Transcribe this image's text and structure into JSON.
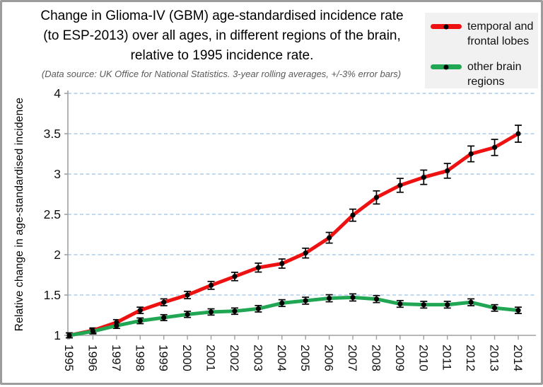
{
  "header": {
    "title_lines": [
      "Change in Glioma-IV (GBM) age-standardised incidence rate",
      "(to ESP-2013) over all ages, in different regions of the brain,",
      "relative to 1995 incidence rate."
    ],
    "subtitle": "(Data source: UK Office for National Statistics.  3-year rolling averages, +/-3% error bars)"
  },
  "legend": {
    "position": "top-right",
    "background": "#f1f1f1",
    "items": [
      {
        "label": "temporal and frontal lobes",
        "color": "#ee1111"
      },
      {
        "label": "other brain regions",
        "color": "#21a654"
      }
    ]
  },
  "chart_data": {
    "type": "line",
    "title": "Change in Glioma-IV (GBM) age-standardised incidence rate (to ESP-2013) over all ages, in different regions of the brain, relative to 1995 incidence rate.",
    "subtitle": "(Data source: UK Office for National Statistics.  3-year rolling averages, +/-3% error bars)",
    "xlabel": "",
    "ylabel": "Relative change in age-standardised incidence",
    "categories": [
      "1995",
      "1996",
      "1997",
      "1998",
      "1999",
      "2000",
      "2001",
      "2002",
      "2003",
      "2004",
      "2005",
      "2006",
      "2007",
      "2008",
      "2009",
      "2010",
      "2011",
      "2012",
      "2013",
      "2014"
    ],
    "series": [
      {
        "name": "temporal and frontal lobes",
        "color": "#ee1111",
        "values": [
          1.0,
          1.06,
          1.16,
          1.31,
          1.41,
          1.5,
          1.62,
          1.73,
          1.84,
          1.89,
          2.02,
          2.21,
          2.49,
          2.71,
          2.86,
          2.96,
          3.04,
          3.25,
          3.33,
          3.5
        ]
      },
      {
        "name": "other brain regions",
        "color": "#21a654",
        "values": [
          1.0,
          1.05,
          1.12,
          1.18,
          1.22,
          1.26,
          1.29,
          1.3,
          1.33,
          1.4,
          1.43,
          1.46,
          1.47,
          1.45,
          1.39,
          1.38,
          1.38,
          1.41,
          1.34,
          1.31
        ]
      }
    ],
    "ylim": [
      1,
      4
    ],
    "yticks": [
      1,
      1.5,
      2,
      2.5,
      3,
      3.5,
      4
    ],
    "error_bar_pct": 3,
    "marker": {
      "shape": "circle",
      "color": "#000000"
    },
    "grid": {
      "horizontal": true,
      "style": "dashed",
      "color": "#9cc2e5"
    },
    "axis_color": "#a0a0a0",
    "legend_position": "top-right"
  }
}
